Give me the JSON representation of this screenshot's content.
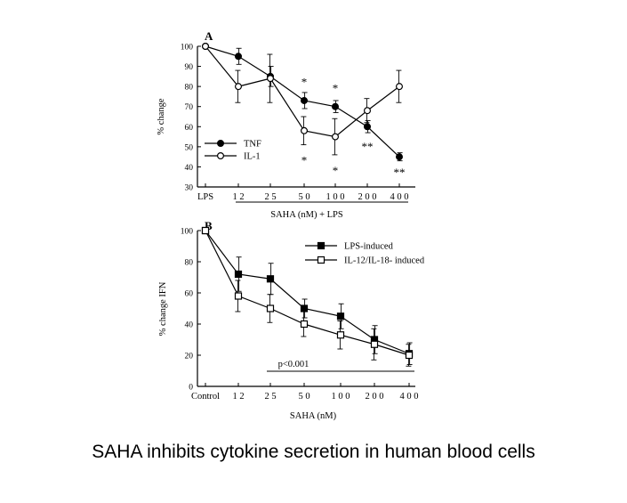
{
  "caption": "SAHA inhibits cytokine secretion in human blood cells",
  "chart_data": [
    {
      "type": "line",
      "panel_label": "A",
      "categories": [
        "LPS",
        "1 2",
        "2 5",
        "5 0",
        "1 0 0",
        "2 0 0",
        "4 0 0"
      ],
      "ylabel": "%  change",
      "xlabel": "SAHA (nM) + LPS",
      "ylim": [
        30,
        100
      ],
      "yticks": [
        "100",
        "90",
        "80",
        "70",
        "60",
        "50",
        "40",
        "30"
      ],
      "legend_position": "lower-left",
      "series": [
        {
          "name": "TNF",
          "marker": "filled-circle",
          "values": [
            100,
            95,
            85,
            73,
            70,
            60,
            45
          ],
          "errors": [
            0,
            4,
            5,
            4,
            3,
            3,
            2
          ]
        },
        {
          "name": "IL-1",
          "marker": "open-circle",
          "values": [
            100,
            80,
            84,
            58,
            55,
            68,
            80
          ],
          "errors": [
            0,
            8,
            12,
            7,
            9,
            6,
            8
          ]
        }
      ],
      "annotations": [
        {
          "x": "5 0",
          "y": 82,
          "text": "*"
        },
        {
          "x": "5 0",
          "y": 43,
          "text": "*"
        },
        {
          "x": "1 0 0",
          "y": 79,
          "text": "*"
        },
        {
          "x": "1 0 0",
          "y": 38,
          "text": "*"
        },
        {
          "x": "2 0 0",
          "y": 50,
          "text": "**"
        },
        {
          "x": "4 0 0",
          "y": 37,
          "text": "**"
        }
      ]
    },
    {
      "type": "line",
      "panel_label": "B",
      "categories": [
        "Control",
        "1 2",
        "2 5",
        "5 0",
        "1 0 0",
        "2 0 0",
        "4 0 0"
      ],
      "ylabel": "%  change IFN",
      "xlabel": "SAHA  (nM)",
      "ylim": [
        0,
        100
      ],
      "yticks": [
        "100",
        "80",
        "60",
        "40",
        "20",
        "0"
      ],
      "legend_position": "top-right",
      "series": [
        {
          "name": "LPS-induced",
          "marker": "filled-square",
          "values": [
            100,
            72,
            69,
            50,
            45,
            30,
            21
          ],
          "errors": [
            0,
            11,
            10,
            6,
            8,
            9,
            7
          ]
        },
        {
          "name": "IL-12/IL-18- induced",
          "marker": "open-square",
          "values": [
            100,
            58,
            50,
            40,
            33,
            27,
            20
          ],
          "errors": [
            0,
            10,
            9,
            8,
            9,
            10,
            7
          ]
        }
      ],
      "annotations": [
        {
          "text": "p<0.001"
        }
      ]
    }
  ]
}
